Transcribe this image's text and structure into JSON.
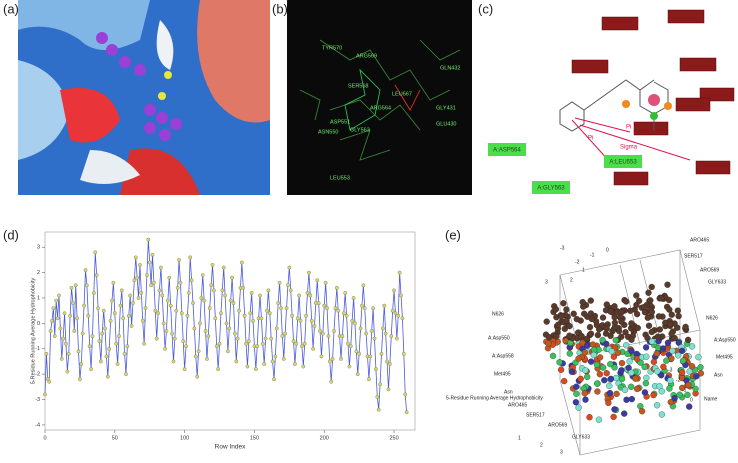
{
  "panel_labels": [
    "(a)",
    "(b)",
    "(c)",
    "(d)",
    "(e)"
  ],
  "panel_b": {
    "labels": [
      "TYR570",
      "ARG569",
      "GLN432",
      "SER568",
      "LEU567",
      "GLY431",
      "ARG564",
      "ASP551",
      "GLU430",
      "ASN550",
      "GLY563",
      "LEU553"
    ]
  },
  "panel_c": {
    "residues": [
      "A:ASP564",
      "A:LEU553",
      "A:GLY563"
    ],
    "interactions": [
      "Pi",
      "Pi",
      "Sigma"
    ]
  },
  "chart_data": {
    "type": "line",
    "x_label": "Row Index",
    "y_label": "5-Residue Running Average Hydrophobicity",
    "line_color": "#4a5bd8",
    "marker_color": "#d8d86a",
    "xlim": [
      0,
      265
    ],
    "xticks": [
      0,
      50,
      100,
      150,
      200,
      250
    ],
    "ylim": [
      -4.2,
      3.6
    ],
    "yticks": [
      -4,
      -3,
      -2,
      -1,
      0,
      1,
      2,
      3
    ],
    "values": [
      -2.8,
      -1.2,
      -2.2,
      -2.3,
      -0.3,
      0.1,
      0.6,
      -0.5,
      0.9,
      0.2,
      1.1,
      -0.2,
      -1.4,
      -0.6,
      0.4,
      -0.8,
      -1.9,
      -1.2,
      0.3,
      1.4,
      0.8,
      -0.3,
      1.5,
      0.2,
      -1.1,
      -2.2,
      -1.6,
      -0.4,
      0.7,
      2.1,
      1.5,
      0.3,
      -0.9,
      -1.8,
      -0.5,
      1.2,
      2.8,
      1.9,
      0.6,
      -0.7,
      -1.5,
      -0.4,
      0.5,
      -0.2,
      -1.3,
      -2.1,
      -1.0,
      0.1,
      0.9,
      1.6,
      0.4,
      -0.8,
      -1.6,
      -0.5,
      0.7,
      1.3,
      0.2,
      -1.2,
      -2.0,
      -0.9,
      0.3,
      1.1,
      -0.1,
      0.8,
      1.7,
      2.6,
      1.8,
      1.0,
      2.3,
      1.2,
      0.1,
      -0.8,
      0.6,
      1.9,
      3.3,
      2.4,
      1.5,
      2.7,
      1.6,
      0.5,
      -0.6,
      0.4,
      1.3,
      2.2,
      1.1,
      0.0,
      -1.0,
      -0.3,
      0.9,
      1.8,
      0.7,
      -0.4,
      -1.5,
      -0.6,
      0.5,
      1.4,
      2.5,
      1.6,
      0.4,
      -0.7,
      -1.8,
      -0.9,
      0.3,
      1.2,
      2.6,
      1.7,
      0.8,
      -0.2,
      -1.3,
      -2.1,
      -1.1,
      0.0,
      1.0,
      1.9,
      0.9,
      -0.3,
      -1.4,
      -0.5,
      0.6,
      1.5,
      2.3,
      1.3,
      0.2,
      -0.9,
      -1.8,
      -0.8,
      0.4,
      1.3,
      2.2,
      1.1,
      0.0,
      -1.1,
      -0.2,
      0.9,
      1.8,
      0.8,
      -0.4,
      -1.5,
      -0.6,
      0.5,
      1.4,
      2.4,
      1.4,
      0.3,
      -0.8,
      -1.7,
      -0.7,
      0.4,
      1.2,
      0.1,
      -0.9,
      -1.8,
      -0.9,
      0.2,
      1.1,
      0.2,
      -0.8,
      -1.6,
      -0.6,
      0.5,
      1.3,
      0.4,
      -0.6,
      -1.5,
      -2.2,
      -1.3,
      -0.2,
      0.8,
      1.6,
      0.6,
      -0.5,
      -1.4,
      -0.4,
      0.6,
      1.5,
      2.2,
      1.3,
      0.3,
      -0.7,
      -1.6,
      -0.8,
      0.2,
      1.1,
      0.1,
      -0.9,
      -1.7,
      -0.8,
      0.3,
      1.2,
      2.0,
      1.1,
      0.1,
      -1.0,
      -0.1,
      0.8,
      1.7,
      0.8,
      -0.3,
      -1.3,
      -0.4,
      0.7,
      1.6,
      0.6,
      -0.5,
      -1.5,
      -2.3,
      -1.4,
      -0.3,
      0.6,
      1.4,
      0.5,
      -0.5,
      -1.4,
      -0.5,
      0.4,
      1.2,
      0.3,
      -0.8,
      -1.7,
      -0.9,
      0.1,
      1.0,
      0.0,
      -1.1,
      -2.0,
      -1.2,
      -0.2,
      0.7,
      1.5,
      0.6,
      -0.4,
      -1.3,
      -2.2,
      -1.3,
      -0.3,
      0.6,
      -0.6,
      -1.8,
      -2.9,
      -3.4,
      -2.4,
      -1.2,
      -0.2,
      0.7,
      -0.4,
      -1.5,
      -2.6,
      -1.6,
      -0.5,
      0.5,
      1.3,
      0.4,
      -0.6,
      0.3,
      2.0,
      1.1,
      0.2,
      -1.2,
      -2.8,
      -3.5
    ]
  },
  "panel_e": {
    "labels": [
      "-3",
      "-2",
      "-1",
      "0",
      "1",
      "2",
      "3",
      "ARO465",
      "SER517",
      "ARO569",
      "GLY633",
      "N626",
      "A:Asp550",
      "A:Asp558",
      "Met495",
      "Asn",
      "5-Residue Running Average Hydrophobicity",
      "Name",
      "ARO465",
      "SER517",
      "ARO569",
      "GLY633",
      "3",
      "2",
      "1",
      "0",
      "-1",
      "-2",
      "-3",
      "N626",
      "A:Asp550",
      "Met495",
      "Asn"
    ]
  }
}
